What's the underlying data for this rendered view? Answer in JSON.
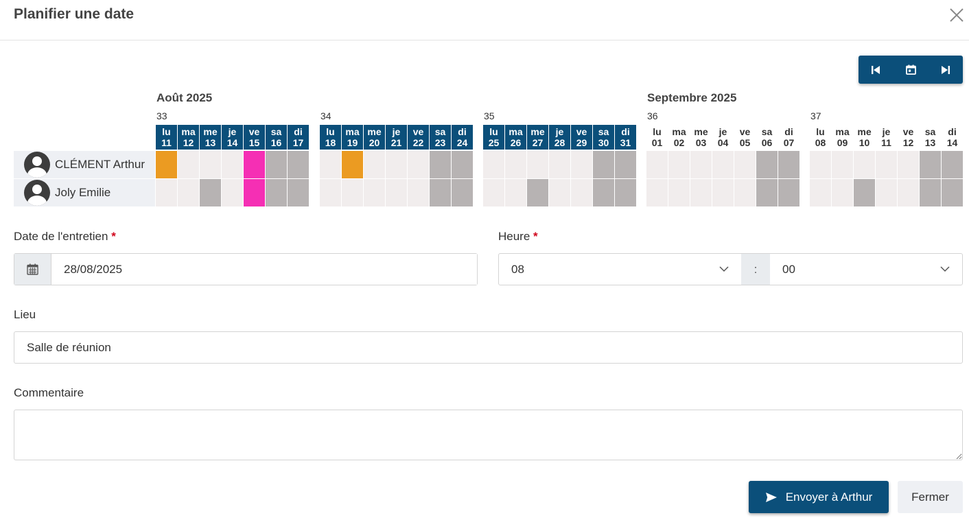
{
  "modal": {
    "title": "Planifier une date"
  },
  "nav": {
    "prev_icon": "skip-previous-icon",
    "today_icon": "calendar-today-icon",
    "next_icon": "skip-next-icon"
  },
  "calendar": {
    "months": [
      "Août 2025",
      "Septembre 2025"
    ],
    "weeks": [
      {
        "num": "33",
        "month": "current",
        "days": [
          {
            "abbr": "lu",
            "date": "11"
          },
          {
            "abbr": "ma",
            "date": "12"
          },
          {
            "abbr": "me",
            "date": "13"
          },
          {
            "abbr": "je",
            "date": "14"
          },
          {
            "abbr": "ve",
            "date": "15"
          },
          {
            "abbr": "sa",
            "date": "16"
          },
          {
            "abbr": "di",
            "date": "17"
          }
        ]
      },
      {
        "num": "34",
        "month": "current",
        "days": [
          {
            "abbr": "lu",
            "date": "18"
          },
          {
            "abbr": "ma",
            "date": "19"
          },
          {
            "abbr": "me",
            "date": "20"
          },
          {
            "abbr": "je",
            "date": "21"
          },
          {
            "abbr": "ve",
            "date": "22"
          },
          {
            "abbr": "sa",
            "date": "23"
          },
          {
            "abbr": "di",
            "date": "24"
          }
        ]
      },
      {
        "num": "35",
        "month": "current",
        "days": [
          {
            "abbr": "lu",
            "date": "25"
          },
          {
            "abbr": "ma",
            "date": "26"
          },
          {
            "abbr": "me",
            "date": "27"
          },
          {
            "abbr": "je",
            "date": "28"
          },
          {
            "abbr": "ve",
            "date": "29"
          },
          {
            "abbr": "sa",
            "date": "30"
          },
          {
            "abbr": "di",
            "date": "31"
          }
        ]
      },
      {
        "num": "36",
        "month": "next",
        "days": [
          {
            "abbr": "lu",
            "date": "01"
          },
          {
            "abbr": "ma",
            "date": "02"
          },
          {
            "abbr": "me",
            "date": "03"
          },
          {
            "abbr": "je",
            "date": "04"
          },
          {
            "abbr": "ve",
            "date": "05"
          },
          {
            "abbr": "sa",
            "date": "06"
          },
          {
            "abbr": "di",
            "date": "07"
          }
        ]
      },
      {
        "num": "37",
        "month": "next",
        "days": [
          {
            "abbr": "lu",
            "date": "08"
          },
          {
            "abbr": "ma",
            "date": "09"
          },
          {
            "abbr": "me",
            "date": "10"
          },
          {
            "abbr": "je",
            "date": "11"
          },
          {
            "abbr": "ve",
            "date": "12"
          },
          {
            "abbr": "sa",
            "date": "13"
          },
          {
            "abbr": "di",
            "date": "14"
          }
        ]
      }
    ],
    "people": [
      {
        "name": "CLÉMENT Arthur",
        "cells": [
          [
            "orange",
            "work",
            "work",
            "work",
            "pink",
            "we",
            "we"
          ],
          [
            "work",
            "orange",
            "work",
            "work",
            "work",
            "we",
            "we"
          ],
          [
            "work",
            "work",
            "work",
            "work",
            "work",
            "we",
            "we"
          ],
          [
            "work",
            "work",
            "work",
            "work",
            "work",
            "we",
            "we"
          ],
          [
            "work",
            "work",
            "work",
            "work",
            "work",
            "we",
            "we"
          ]
        ]
      },
      {
        "name": "Joly Emilie",
        "cells": [
          [
            "work",
            "work",
            "we",
            "work",
            "pink",
            "we",
            "we"
          ],
          [
            "work",
            "work",
            "work",
            "work",
            "work",
            "we",
            "we"
          ],
          [
            "work",
            "work",
            "we",
            "work",
            "work",
            "we",
            "we"
          ],
          [
            "work",
            "work",
            "work",
            "work",
            "work",
            "we",
            "we"
          ],
          [
            "work",
            "work",
            "we",
            "work",
            "work",
            "we",
            "we"
          ]
        ]
      }
    ],
    "colors": {
      "work": "#f1eded",
      "we": "#b7b3b3",
      "orange": "#eb9b22",
      "pink": "#f52fb4",
      "header": "#0b4f7a"
    }
  },
  "form": {
    "date_label": "Date de l'entretien",
    "date_value": "28/08/2025",
    "time_label": "Heure",
    "hour_value": "08",
    "time_sep": ":",
    "minute_value": "00",
    "required_mark": "*",
    "location_label": "Lieu",
    "location_value": "Salle de réunion",
    "comment_label": "Commentaire",
    "comment_value": ""
  },
  "buttons": {
    "send_label": "Envoyer à Arthur",
    "close_label": "Fermer"
  }
}
